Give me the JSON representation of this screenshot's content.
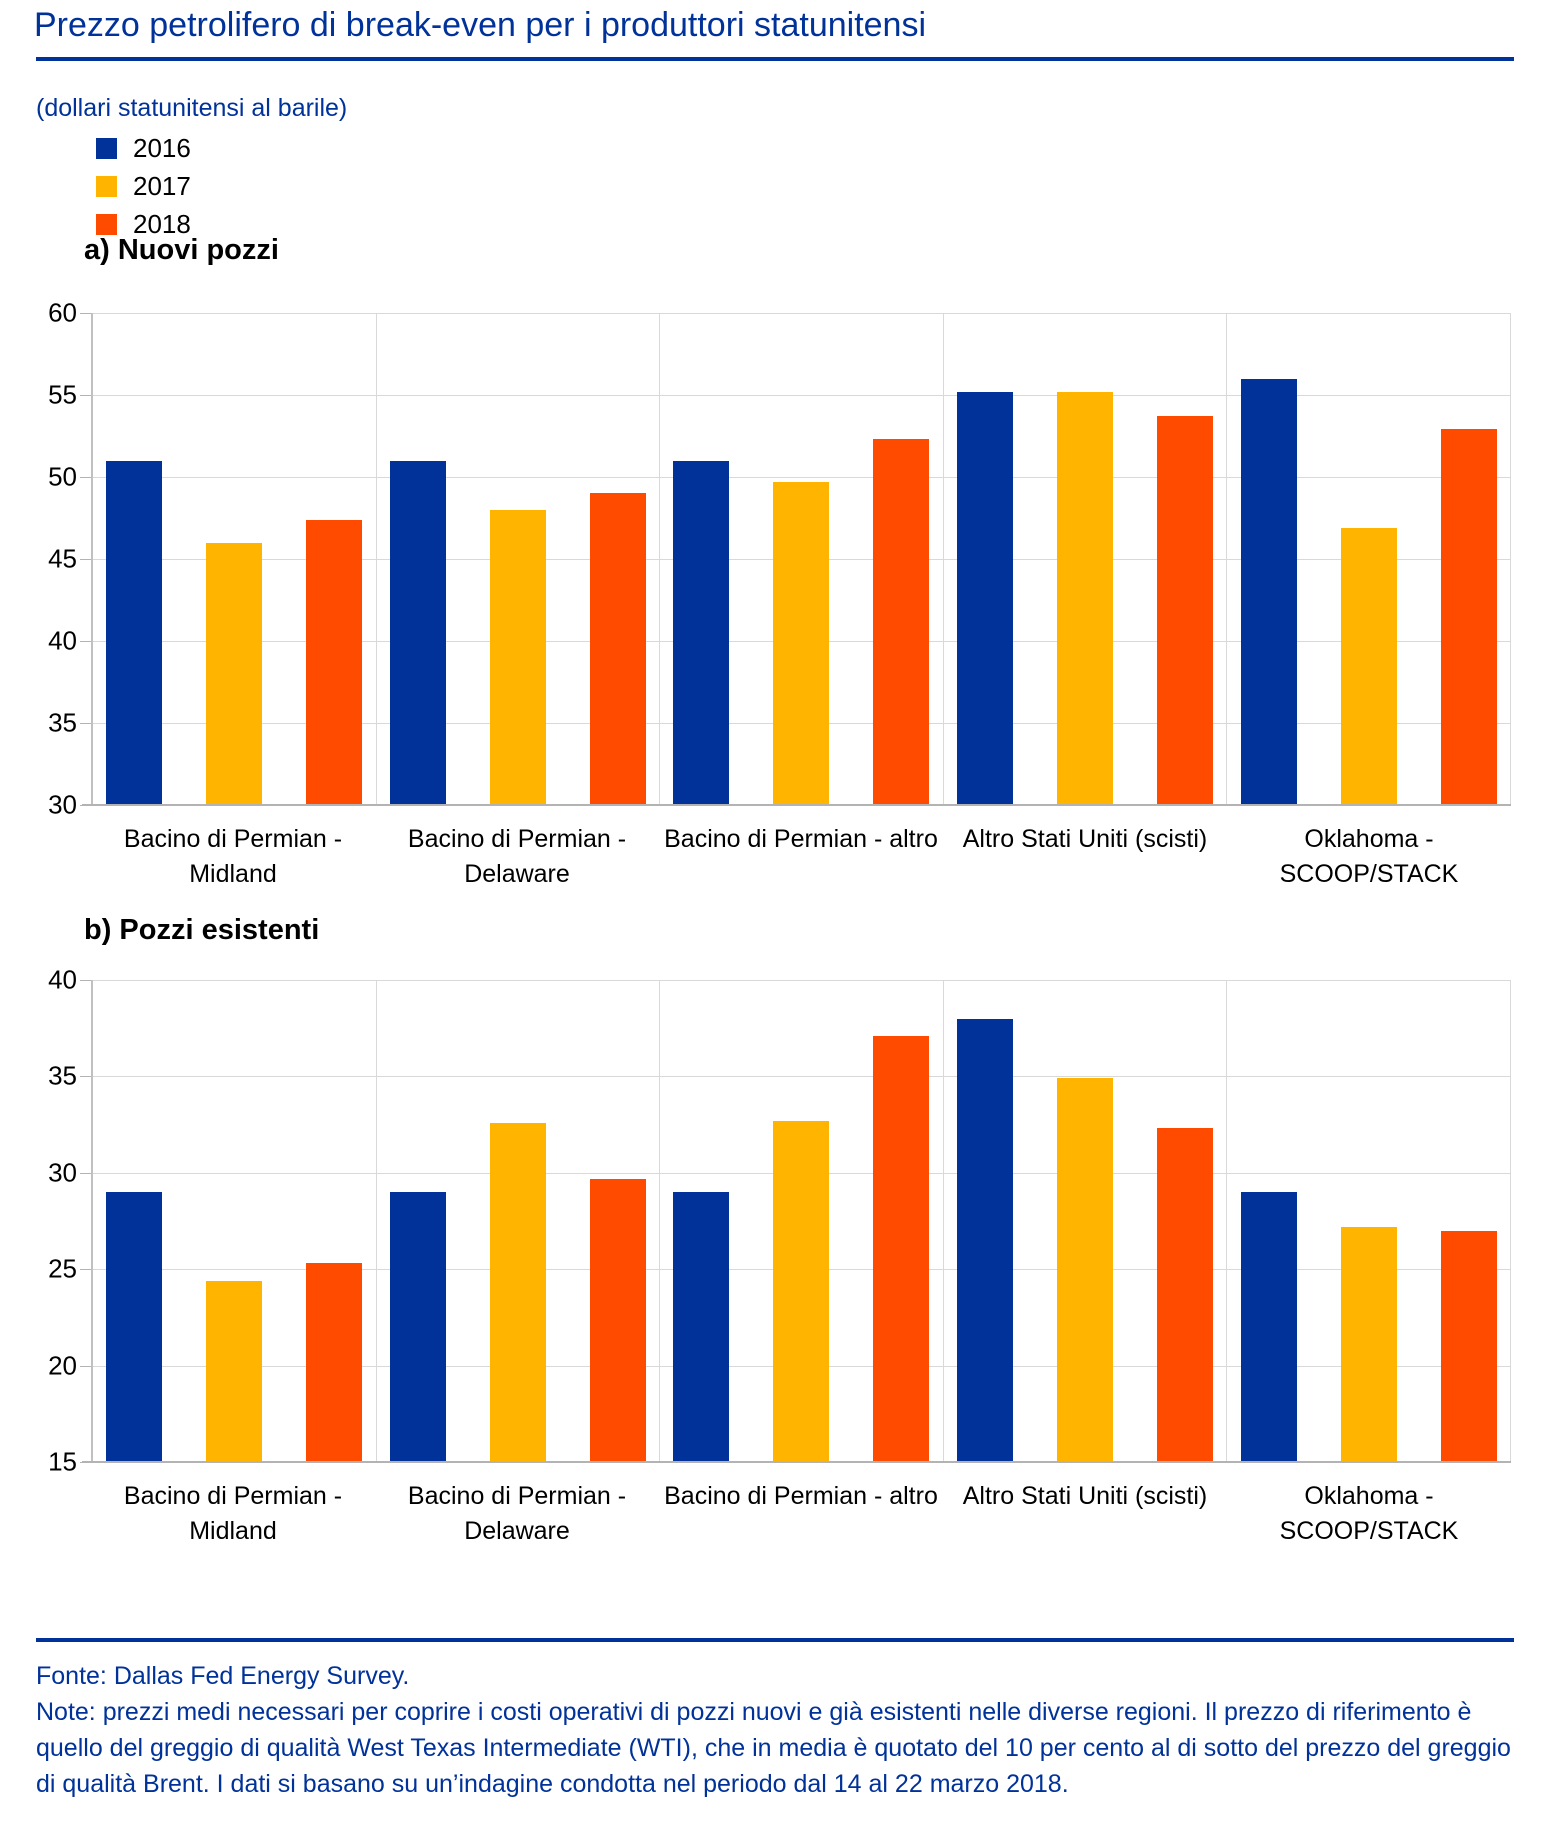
{
  "title": "Prezzo petrolifero di break-even per i produttori statunitensi",
  "subtitle": "(dollari statunitensi al barile)",
  "legend": [
    {
      "label": "2016",
      "color": "#003299"
    },
    {
      "label": "2017",
      "color": "#FFB400"
    },
    {
      "label": "2018",
      "color": "#FF4B00"
    }
  ],
  "colors": {
    "accent_blue": "#003299",
    "series_2016": "#003299",
    "series_2017": "#FFB400",
    "series_2018": "#FF4B00",
    "gridline": "#d9d9d9",
    "axis": "#b3b3b3"
  },
  "chart_data": [
    {
      "type": "bar",
      "title": "a) Nuovi pozzi",
      "categories": [
        "Bacino di Permian -\nMidland",
        "Bacino di Permian -\nDelaware",
        "Bacino di Permian - altro",
        "Altro Stati Uniti (scisti)",
        "Oklahoma -\nSCOOP/STACK"
      ],
      "series": [
        {
          "name": "2016",
          "color": "#003299",
          "values": [
            51.0,
            51.0,
            51.0,
            55.2,
            56.0
          ]
        },
        {
          "name": "2017",
          "color": "#FFB400",
          "values": [
            46.0,
            48.0,
            49.7,
            55.2,
            46.9
          ]
        },
        {
          "name": "2018",
          "color": "#FF4B00",
          "values": [
            47.4,
            49.0,
            52.3,
            53.7,
            52.9
          ]
        }
      ],
      "xlabel": "",
      "ylabel": "",
      "ylim": [
        30,
        60
      ],
      "ytick_step": 5,
      "grid": true,
      "legend_position": "top-left"
    },
    {
      "type": "bar",
      "title": "b) Pozzi esistenti",
      "categories": [
        "Bacino di Permian -\nMidland",
        "Bacino di Permian -\nDelaware",
        "Bacino di Permian - altro",
        "Altro Stati Uniti (scisti)",
        "Oklahoma -\nSCOOP/STACK"
      ],
      "series": [
        {
          "name": "2016",
          "color": "#003299",
          "values": [
            29.0,
            29.0,
            29.0,
            38.0,
            29.0
          ]
        },
        {
          "name": "2017",
          "color": "#FFB400",
          "values": [
            24.4,
            32.6,
            32.7,
            34.9,
            27.2
          ]
        },
        {
          "name": "2018",
          "color": "#FF4B00",
          "values": [
            25.3,
            29.7,
            37.1,
            32.3,
            27.0
          ]
        }
      ],
      "xlabel": "",
      "ylabel": "",
      "ylim": [
        15,
        40
      ],
      "ytick_step": 5,
      "grid": true,
      "legend_position": "top-left"
    }
  ],
  "footer": {
    "source": "Fonte: Dallas Fed Energy Survey.",
    "note": "Note: prezzi medi necessari per coprire i costi operativi di pozzi nuovi e già esistenti nelle diverse regioni. Il prezzo di riferimento è quello del greggio di qualità West Texas Intermediate (WTI), che in media è quotato del 10 per cento al di sotto del prezzo del greggio di qualità Brent. I dati si basano su un’indagine condotta nel periodo dal 14 al 22 marzo 2018."
  }
}
